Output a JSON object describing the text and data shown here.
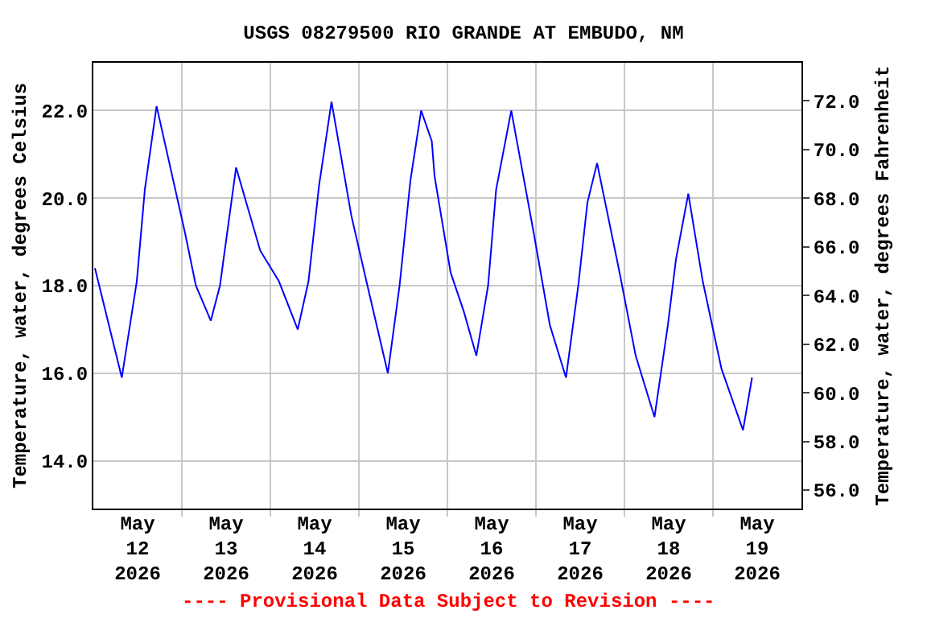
{
  "chart_data": {
    "type": "line",
    "title": "USGS 08279500 RIO GRANDE AT EMBUDO, NM",
    "ylabel": "Temperature, water, degrees Celsius",
    "y2label": "Temperature, water, degrees Fahrenheit",
    "annotations": [
      "---- Provisional Data Subject to Revision ----"
    ],
    "x": [
      "2026-05-12T00:26",
      "2026-05-12T07:43",
      "2026-05-12T11:47",
      "2026-05-12T13:58",
      "2026-05-12T17:09",
      "2026-05-13T00:52",
      "2026-05-13T03:48",
      "2026-05-13T07:51",
      "2026-05-13T10:20",
      "2026-05-13T14:42",
      "2026-05-13T21:15",
      "2026-05-14T02:19",
      "2026-05-14T07:25",
      "2026-05-14T10:20",
      "2026-05-14T13:13",
      "2026-05-14T16:35",
      "2026-05-14T21:57",
      "2026-05-15T02:19",
      "2026-05-15T07:51",
      "2026-05-15T11:02",
      "2026-05-15T13:58",
      "2026-05-15T16:53",
      "2026-05-15T19:46",
      "2026-05-15T20:31",
      "2026-05-16T00:52",
      "2026-05-16T04:29",
      "2026-05-16T07:51",
      "2026-05-16T11:02",
      "2026-05-16T13:13",
      "2026-05-16T17:19",
      "2026-05-16T23:25",
      "2026-05-17T03:47",
      "2026-05-17T08:09",
      "2026-05-17T11:29",
      "2026-05-17T13:58",
      "2026-05-17T16:35",
      "2026-05-17T22:41",
      "2026-05-18T03:03",
      "2026-05-18T08:09",
      "2026-05-18T11:47",
      "2026-05-18T13:58",
      "2026-05-18T17:19",
      "2026-05-18T21:14",
      "2026-05-19T02:19",
      "2026-05-19T08:09",
      "2026-05-19T10:36"
    ],
    "series": [
      {
        "color": "#0000ff",
        "values": [
          18.4,
          15.9,
          18.1,
          20.2,
          22.1,
          19.2,
          18.0,
          17.2,
          18.0,
          20.7,
          18.8,
          18.1,
          17.0,
          18.1,
          20.3,
          22.2,
          19.6,
          18.0,
          16.0,
          18.0,
          20.4,
          22.0,
          21.3,
          20.5,
          18.3,
          17.4,
          16.4,
          18.0,
          20.2,
          22.0,
          19.2,
          17.1,
          15.9,
          18.0,
          19.9,
          20.8,
          18.3,
          16.4,
          15.0,
          17.1,
          18.6,
          20.1,
          18.1,
          16.1,
          14.7,
          15.9
        ]
      }
    ],
    "xlim": [
      "2026-05-12",
      "2026-05-20"
    ],
    "xticks": [
      {
        "value": "2026-05-12T12:00",
        "label": "May\n12\n2026"
      },
      {
        "value": "2026-05-13T12:00",
        "label": "May\n13\n2026"
      },
      {
        "value": "2026-05-14T12:00",
        "label": "May\n14\n2026"
      },
      {
        "value": "2026-05-15T12:00",
        "label": "May\n15\n2026"
      },
      {
        "value": "2026-05-16T12:00",
        "label": "May\n16\n2026"
      },
      {
        "value": "2026-05-17T12:00",
        "label": "May\n17\n2026"
      },
      {
        "value": "2026-05-18T12:00",
        "label": "May\n18\n2026"
      },
      {
        "value": "2026-05-19T12:00",
        "label": "May\n19\n2026"
      },
      {
        "value": "2026-05-13",
        "label": null
      },
      {
        "value": "2026-05-14",
        "label": null
      },
      {
        "value": "2026-05-15",
        "label": null
      },
      {
        "value": "2026-05-16",
        "label": null
      },
      {
        "value": "2026-05-17",
        "label": null
      },
      {
        "value": "2026-05-18",
        "label": null
      },
      {
        "value": "2026-05-19",
        "label": null
      }
    ],
    "ylim": [
      12.91,
      23.09
    ],
    "yticks": [
      {
        "value": 14,
        "label": "14.0"
      },
      {
        "value": 16,
        "label": "16.0"
      },
      {
        "value": 18,
        "label": "18.0"
      },
      {
        "value": 20,
        "label": "20.0"
      },
      {
        "value": 22,
        "label": "22.0"
      }
    ],
    "y2lim": [
      55.24,
      73.57
    ],
    "y2ticks": [
      {
        "value": 56,
        "label": "56.0"
      },
      {
        "value": 58,
        "label": "58.0"
      },
      {
        "value": 60,
        "label": "60.0"
      },
      {
        "value": 62,
        "label": "62.0"
      },
      {
        "value": 64,
        "label": "64.0"
      },
      {
        "value": 66,
        "label": "66.0"
      },
      {
        "value": 68,
        "label": "68.0"
      },
      {
        "value": 70,
        "label": "70.0"
      },
      {
        "value": 72,
        "label": "72.0"
      }
    ],
    "grid": true,
    "line_style": "solid"
  }
}
